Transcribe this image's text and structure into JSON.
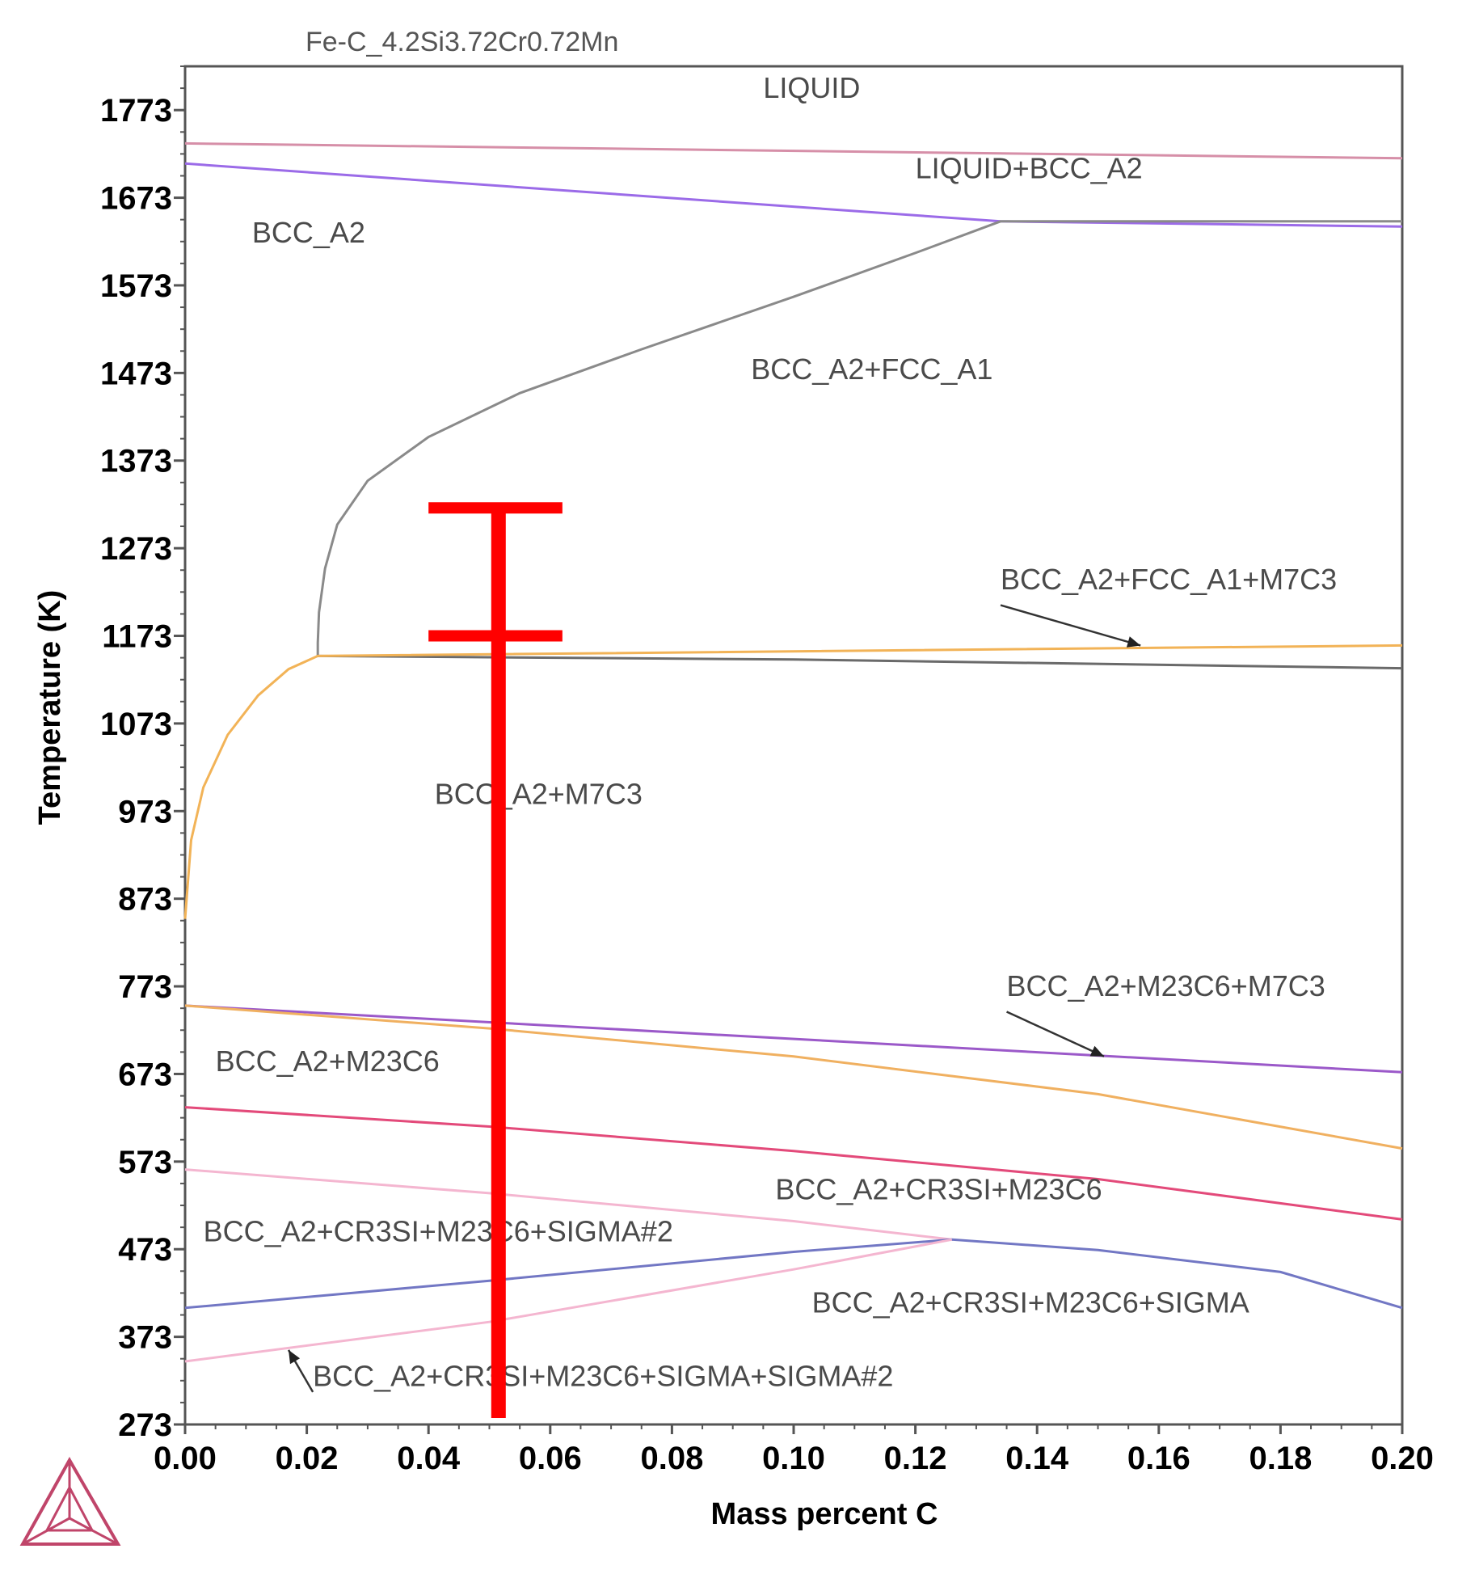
{
  "chart_data": {
    "type": "line",
    "title": "Fe-C_4.2Si3.72Cr0.72Mn",
    "xlabel": "Mass percent C",
    "ylabel": "Temperature (K)",
    "xlim": [
      0.0,
      0.2
    ],
    "ylim": [
      273,
      1823
    ],
    "x_ticks": [
      0.0,
      0.02,
      0.04,
      0.06,
      0.08,
      0.1,
      0.12,
      0.14,
      0.16,
      0.18,
      0.2
    ],
    "x_tick_labels": [
      "0.00",
      "0.02",
      "0.04",
      "0.06",
      "0.08",
      "0.10",
      "0.12",
      "0.14",
      "0.16",
      "0.18",
      "0.20"
    ],
    "y_ticks": [
      273,
      373,
      473,
      573,
      673,
      773,
      873,
      973,
      1073,
      1173,
      1273,
      1373,
      1473,
      1573,
      1673,
      1773
    ],
    "y_tick_labels": [
      "273",
      "373",
      "473",
      "573",
      "673",
      "773",
      "873",
      "973",
      "1073",
      "1173",
      "1273",
      "1373",
      "1473",
      "1573",
      "1673",
      "1773"
    ],
    "grid": false,
    "series": [
      {
        "name": "liquidus",
        "color": "#d68fa8",
        "points": [
          [
            0.0,
            1735
          ],
          [
            0.2,
            1718
          ]
        ]
      },
      {
        "name": "bcc-liquid solidus",
        "color": "#9b6be8",
        "points": [
          [
            0.0,
            1712
          ],
          [
            0.134,
            1646
          ],
          [
            0.2,
            1640
          ]
        ]
      },
      {
        "name": "fcc-bcc boundary (upper)",
        "color": "#8a8a8a",
        "points": [
          [
            0.0218,
            1150
          ],
          [
            0.0218,
            1165
          ],
          [
            0.022,
            1200
          ],
          [
            0.023,
            1250
          ],
          [
            0.025,
            1300
          ],
          [
            0.03,
            1350
          ],
          [
            0.04,
            1400
          ],
          [
            0.055,
            1450
          ],
          [
            0.075,
            1500
          ],
          [
            0.1,
            1560
          ],
          [
            0.12,
            1610
          ],
          [
            0.134,
            1646
          ],
          [
            0.2,
            1646
          ]
        ]
      },
      {
        "name": "eutectoid-like lower",
        "color": "#6a6a6a",
        "points": [
          [
            0.0218,
            1150
          ],
          [
            0.1,
            1146
          ],
          [
            0.2,
            1136
          ]
        ]
      },
      {
        "name": "m7c3 solvus",
        "color": "#f2b357",
        "points": [
          [
            0.0,
            850
          ],
          [
            0.001,
            940
          ],
          [
            0.003,
            1000
          ],
          [
            0.007,
            1060
          ],
          [
            0.012,
            1105
          ],
          [
            0.017,
            1135
          ],
          [
            0.0218,
            1150
          ],
          [
            0.2,
            1162
          ]
        ]
      },
      {
        "name": "m23c6 upper",
        "color": "#9b59c9",
        "points": [
          [
            0.0,
            751
          ],
          [
            0.2,
            675
          ]
        ]
      },
      {
        "name": "m23c6 lower",
        "color": "#f0b060",
        "points": [
          [
            0.0,
            751
          ],
          [
            0.05,
            725
          ],
          [
            0.1,
            693
          ],
          [
            0.15,
            650
          ],
          [
            0.2,
            588
          ]
        ]
      },
      {
        "name": "cr3si boundary",
        "color": "#e34a7a",
        "points": [
          [
            0.0,
            635
          ],
          [
            0.05,
            613
          ],
          [
            0.1,
            585
          ],
          [
            0.15,
            553
          ],
          [
            0.2,
            507
          ]
        ]
      },
      {
        "name": "sigma#2 upper",
        "color": "#f4b6d0",
        "points": [
          [
            0.0,
            564
          ],
          [
            0.05,
            537
          ],
          [
            0.1,
            505
          ],
          [
            0.126,
            484
          ]
        ]
      },
      {
        "name": "sigma boundary",
        "color": "#7277c4",
        "points": [
          [
            0.0,
            406
          ],
          [
            0.05,
            437
          ],
          [
            0.1,
            470
          ],
          [
            0.126,
            484
          ],
          [
            0.15,
            472
          ],
          [
            0.18,
            447
          ],
          [
            0.2,
            406
          ]
        ]
      },
      {
        "name": "sigma#2 lower",
        "color": "#f4b6d0",
        "points": [
          [
            0.0,
            345
          ],
          [
            0.05,
            390
          ],
          [
            0.1,
            450
          ],
          [
            0.126,
            484
          ]
        ]
      }
    ],
    "annotations": [
      {
        "text": "LIQUID",
        "x": 0.095,
        "y": 1787
      },
      {
        "text": "LIQUID+BCC_A2",
        "x": 0.12,
        "y": 1695
      },
      {
        "text": "BCC_A2",
        "x": 0.011,
        "y": 1622
      },
      {
        "text": "BCC_A2+FCC_A1",
        "x": 0.093,
        "y": 1466
      },
      {
        "text": "BCC_A2+FCC_A1+M7C3",
        "x": 0.134,
        "y": 1226
      },
      {
        "text": "BCC_A2+M7C3",
        "x": 0.041,
        "y": 981
      },
      {
        "text": "BCC_A2+M23C6+M7C3",
        "x": 0.135,
        "y": 762
      },
      {
        "text": "BCC_A2+M23C6",
        "x": 0.005,
        "y": 676
      },
      {
        "text": "BCC_A2+CR3SI+M23C6",
        "x": 0.097,
        "y": 530
      },
      {
        "text": "BCC_A2+CR3SI+M23C6+SIGMA#2",
        "x": 0.003,
        "y": 482
      },
      {
        "text": "BCC_A2+CR3SI+M23C6+SIGMA",
        "x": 0.103,
        "y": 401
      },
      {
        "text": "BCC_A2+CR3SI+M23C6+SIGMA+SIGMA#2",
        "x": 0.021,
        "y": 317
      }
    ],
    "arrows": [
      {
        "from": [
          0.134,
          1208
        ],
        "to": [
          0.157,
          1162
        ]
      },
      {
        "from": [
          0.135,
          744
        ],
        "to": [
          0.151,
          693
        ]
      },
      {
        "from": [
          0.021,
          310
        ],
        "to": [
          0.017,
          358
        ]
      }
    ],
    "marker": {
      "color": "#ff0000",
      "x": 0.0515,
      "y_bottom": 273,
      "y_top": 1319,
      "cap_levels": [
        1319,
        1173
      ],
      "cap_x_range": [
        0.04,
        0.062
      ]
    }
  },
  "logo": {
    "name": "thermo-calc-logo",
    "color": "#c0456a"
  }
}
